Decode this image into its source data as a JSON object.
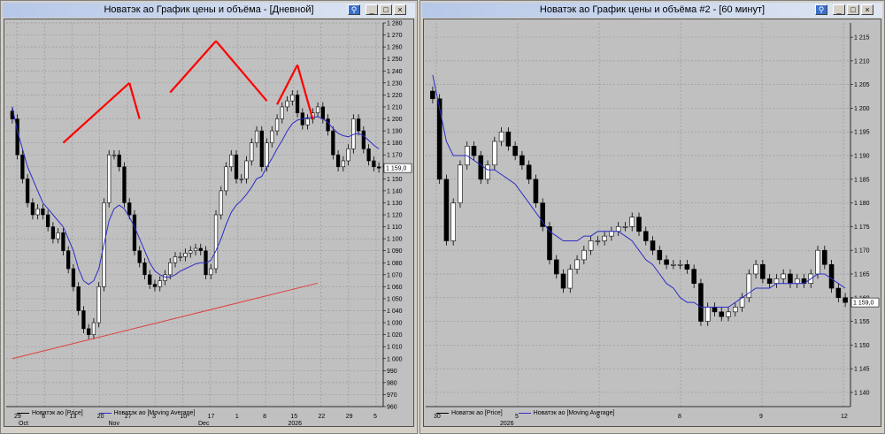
{
  "windows": [
    {
      "title": "Новатэк ао График цены и объёма - [Дневной]",
      "last_price_label": "1 159,0",
      "legend": [
        "Новатэк ао [Price]",
        "Новатэк ао [Moving Average]"
      ],
      "colors": {
        "price": "#000000",
        "ma": "#2c2cc8",
        "annotation": "#ff0000",
        "trendline": "#e04040"
      },
      "chart_data": {
        "type": "candlestick",
        "ylim": [
          960,
          1280
        ],
        "yticks": [
          960,
          970,
          980,
          990,
          1000,
          1010,
          1020,
          1030,
          1040,
          1050,
          1060,
          1070,
          1080,
          1090,
          1100,
          1110,
          1120,
          1130,
          1140,
          1150,
          1160,
          1170,
          1180,
          1190,
          1200,
          1210,
          1220,
          1230,
          1240,
          1250,
          1260,
          1270,
          1280
        ],
        "x_day_ticks": [
          "29",
          "6",
          "13",
          "20",
          "27",
          "3",
          "10",
          "17",
          "1",
          "8",
          "15",
          "22",
          "29",
          "5"
        ],
        "x_period_labels": [
          "Oct",
          "Nov",
          "Dec",
          "2026"
        ],
        "close": [
          1200,
          1170,
          1150,
          1130,
          1120,
          1125,
          1120,
          1110,
          1100,
          1105,
          1090,
          1075,
          1060,
          1040,
          1025,
          1020,
          1030,
          1060,
          1130,
          1170,
          1170,
          1160,
          1130,
          1120,
          1090,
          1080,
          1070,
          1062,
          1060,
          1065,
          1070,
          1080,
          1085,
          1085,
          1088,
          1090,
          1092,
          1090,
          1070,
          1075,
          1120,
          1140,
          1160,
          1170,
          1150,
          1150,
          1165,
          1180,
          1190,
          1160,
          1180,
          1190,
          1200,
          1210,
          1215,
          1220,
          1205,
          1195,
          1200,
          1205,
          1210,
          1200,
          1190,
          1170,
          1160,
          1165,
          1175,
          1200,
          1190,
          1175,
          1165,
          1160,
          1159
        ],
        "moving_average": [
          1210,
          1190,
          1175,
          1160,
          1150,
          1140,
          1130,
          1125,
          1120,
          1115,
          1110,
          1100,
          1090,
          1075,
          1065,
          1062,
          1065,
          1075,
          1095,
          1115,
          1125,
          1128,
          1125,
          1118,
          1110,
          1100,
          1090,
          1080,
          1073,
          1070,
          1068,
          1068,
          1070,
          1073,
          1075,
          1077,
          1079,
          1080,
          1080,
          1082,
          1090,
          1100,
          1112,
          1122,
          1128,
          1132,
          1137,
          1143,
          1150,
          1152,
          1160,
          1167,
          1175,
          1182,
          1190,
          1196,
          1199,
          1200,
          1201,
          1201,
          1202,
          1200,
          1197,
          1192,
          1188,
          1186,
          1185,
          1187,
          1188,
          1186,
          1182,
          1178,
          1175
        ],
        "annotations": [
          {
            "kind": "line",
            "x0": 10,
            "y0": 1180,
            "x1": 23,
            "y1": 1230
          },
          {
            "kind": "line",
            "x0": 23,
            "y0": 1230,
            "x1": 25,
            "y1": 1200
          },
          {
            "kind": "line",
            "x0": 31,
            "y0": 1222,
            "x1": 40,
            "y1": 1265
          },
          {
            "kind": "line",
            "x0": 40,
            "y0": 1265,
            "x1": 50,
            "y1": 1215
          },
          {
            "kind": "line",
            "x0": 52,
            "y0": 1212,
            "x1": 56,
            "y1": 1245
          },
          {
            "kind": "line",
            "x0": 56,
            "y0": 1245,
            "x1": 59,
            "y1": 1200
          },
          {
            "kind": "support",
            "x0": 0,
            "y0": 1000,
            "x1": 60,
            "y1": 1063
          }
        ]
      }
    },
    {
      "title": "Новатэк ао График цены и объёма #2 - [60 минут]",
      "last_price_label": "1 159,0",
      "legend": [
        "Новатэк ао [Price]",
        "Новатэк ао [Moving Average]"
      ],
      "colors": {
        "price": "#000000",
        "ma": "#2c2cc8"
      },
      "chart_data": {
        "type": "candlestick",
        "ylim": [
          1137,
          1218
        ],
        "yticks": [
          1140,
          1145,
          1150,
          1155,
          1160,
          1165,
          1170,
          1175,
          1180,
          1185,
          1190,
          1195,
          1200,
          1205,
          1210,
          1215
        ],
        "x_day_ticks": [
          "30",
          "5",
          "6",
          "8",
          "9",
          "12"
        ],
        "x_period_labels": [
          "2026"
        ],
        "close": [
          1202,
          1185,
          1172,
          1180,
          1188,
          1192,
          1190,
          1185,
          1188,
          1193,
          1195,
          1192,
          1190,
          1188,
          1185,
          1180,
          1175,
          1168,
          1165,
          1162,
          1166,
          1168,
          1170,
          1172,
          1172,
          1173,
          1174,
          1175,
          1175,
          1177,
          1174,
          1172,
          1170,
          1168,
          1167,
          1167,
          1167,
          1166,
          1163,
          1155,
          1158,
          1157,
          1156,
          1157,
          1158,
          1160,
          1165,
          1167,
          1164,
          1163,
          1164,
          1165,
          1163,
          1164,
          1163,
          1165,
          1170,
          1167,
          1162,
          1160,
          1159
        ],
        "moving_average": [
          1207,
          1200,
          1193,
          1190,
          1190,
          1190,
          1189,
          1188,
          1187,
          1187,
          1186,
          1185,
          1184,
          1182,
          1180,
          1178,
          1176,
          1174,
          1173,
          1172,
          1172,
          1172,
          1173,
          1173,
          1174,
          1174,
          1174,
          1174,
          1173,
          1172,
          1170,
          1168,
          1167,
          1165,
          1163,
          1162,
          1160,
          1159,
          1159,
          1158,
          1158,
          1158,
          1158,
          1158,
          1159,
          1160,
          1161,
          1162,
          1162,
          1162,
          1163,
          1163,
          1163,
          1163,
          1163,
          1164,
          1165,
          1165,
          1164,
          1163,
          1162
        ]
      }
    }
  ]
}
